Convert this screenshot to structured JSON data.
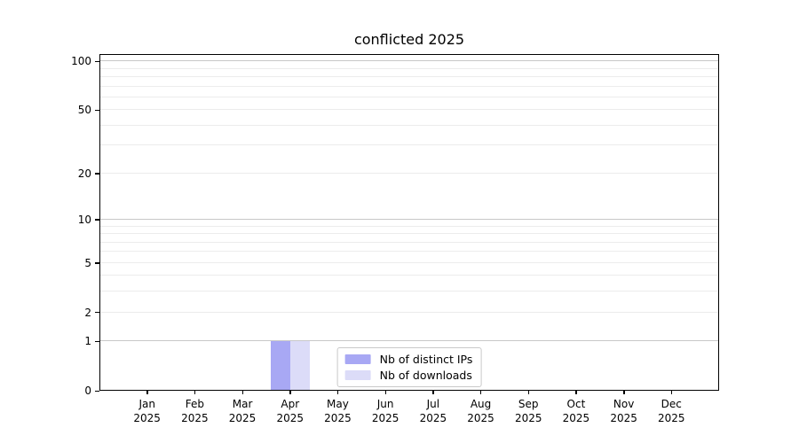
{
  "title": "conflicted 2025",
  "chart_data": {
    "type": "bar",
    "title": "conflicted 2025",
    "categories": [
      "Jan 2025",
      "Feb 2025",
      "Mar 2025",
      "Apr 2025",
      "May 2025",
      "Jun 2025",
      "Jul 2025",
      "Aug 2025",
      "Sep 2025",
      "Oct 2025",
      "Nov 2025",
      "Dec 2025"
    ],
    "series": [
      {
        "name": "Nb of distinct IPs",
        "color": "#a8a8f4",
        "values": [
          0,
          0,
          0,
          1,
          0,
          0,
          0,
          0,
          0,
          0,
          0,
          0
        ]
      },
      {
        "name": "Nb of downloads",
        "color": "#dcdcf8",
        "values": [
          0,
          0,
          0,
          1,
          0,
          0,
          0,
          0,
          0,
          0,
          0,
          0
        ]
      }
    ],
    "xlabel": "",
    "ylabel": "",
    "yscale": "log1p",
    "ylim": [
      0,
      111
    ],
    "y_ticks": [
      0,
      1,
      2,
      5,
      10,
      20,
      50,
      100
    ],
    "major_grid": [
      1,
      10,
      100
    ],
    "minor_grid": [
      2,
      3,
      4,
      5,
      6,
      7,
      8,
      9,
      20,
      30,
      40,
      50,
      60,
      70,
      80,
      90
    ],
    "grid": true,
    "legend_position": "lower center"
  },
  "legend": {
    "items": [
      {
        "label": "Nb of distinct IPs",
        "color": "#a8a8f4"
      },
      {
        "label": "Nb of downloads",
        "color": "#dcdcf8"
      }
    ]
  },
  "colors": {
    "background": "#ffffff",
    "spine": "#000000",
    "major_grid": "#c8c8c8",
    "minor_grid": "#ececec",
    "text": "#000000"
  }
}
